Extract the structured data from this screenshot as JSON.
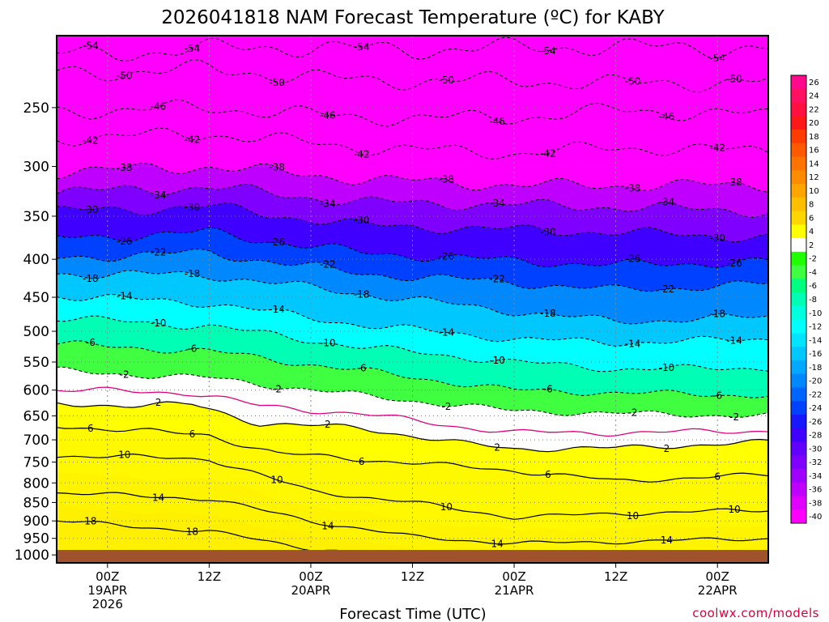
{
  "chart_data": {
    "type": "heatmap",
    "title": "2026041818 NAM Forecast Temperature (ºC) for KABY",
    "xlabel": "Forecast Time (UTC)",
    "ylabel": "",
    "credit": "coolwx.com/models",
    "y_axis": {
      "unit": "hPa",
      "scale": "log-pressure",
      "range": [
        1025,
        200
      ],
      "ticks": [
        "250",
        "300",
        "350",
        "400",
        "450",
        "500",
        "550",
        "600",
        "650",
        "700",
        "750",
        "800",
        "850",
        "900",
        "950",
        "1000"
      ]
    },
    "x_axis": {
      "unit": "forecast hour",
      "range": [
        -6,
        78
      ],
      "ticks": [
        {
          "hour": 0,
          "line1": "00Z",
          "line2": "19APR",
          "line3": "2026"
        },
        {
          "hour": 12,
          "line1": "12Z",
          "line2": "",
          "line3": ""
        },
        {
          "hour": 24,
          "line1": "00Z",
          "line2": "20APR",
          "line3": ""
        },
        {
          "hour": 36,
          "line1": "12Z",
          "line2": "",
          "line3": ""
        },
        {
          "hour": 48,
          "line1": "00Z",
          "line2": "21APR",
          "line3": ""
        },
        {
          "hour": 60,
          "line1": "12Z",
          "line2": "",
          "line3": ""
        },
        {
          "hour": 72,
          "line1": "00Z",
          "line2": "22APR",
          "line3": ""
        }
      ]
    },
    "colorbar": {
      "labels": [
        "26",
        "24",
        "22",
        "20",
        "18",
        "16",
        "14",
        "12",
        "10",
        "8",
        "6",
        "4",
        "2",
        "-2",
        "-4",
        "-6",
        "-8",
        "-10",
        "-12",
        "-14",
        "-16",
        "-18",
        "-20",
        "-22",
        "-24",
        "-26",
        "-28",
        "-30",
        "-32",
        "-34",
        "-36",
        "-38",
        "-40"
      ],
      "colors": [
        "#ff0a8c",
        "#ff1060",
        "#ff1040",
        "#ff1818",
        "#ff3c00",
        "#ff5a00",
        "#ff7400",
        "#ff8c00",
        "#ffa500",
        "#ffbe00",
        "#ffd700",
        "#ffff00",
        "#ffffff",
        "#20ff00",
        "#40ff40",
        "#00ff80",
        "#00ffb4",
        "#00ffdc",
        "#00ffff",
        "#00e4ff",
        "#00c8ff",
        "#00a8ff",
        "#0088ff",
        "#0064ff",
        "#0040ff",
        "#1818ff",
        "#4000ff",
        "#6000ff",
        "#8000ff",
        "#a000ff",
        "#c000ff",
        "#e000ff",
        "#ff00ff"
      ]
    },
    "series": [
      {
        "name": "-54",
        "values": [
          [
            -2,
            212
          ],
          [
            18,
            207
          ],
          [
            36,
            209
          ],
          [
            54,
            207
          ],
          [
            78,
            208
          ]
        ]
      },
      {
        "name": "-50",
        "values": [
          [
            -6,
            225
          ],
          [
            12,
            222
          ],
          [
            30,
            230
          ],
          [
            48,
            230
          ],
          [
            60,
            232
          ],
          [
            78,
            231
          ]
        ]
      },
      {
        "name": "-46",
        "values": [
          [
            -6,
            253
          ],
          [
            12,
            250
          ],
          [
            30,
            258
          ],
          [
            48,
            258
          ],
          [
            60,
            252
          ],
          [
            78,
            256
          ]
        ]
      },
      {
        "name": "-42",
        "values": [
          [
            -6,
            275
          ],
          [
            12,
            271
          ],
          [
            30,
            283
          ],
          [
            48,
            288
          ],
          [
            60,
            283
          ],
          [
            78,
            286
          ]
        ]
      },
      {
        "name": "-38",
        "values": [
          [
            -6,
            305
          ],
          [
            12,
            300
          ],
          [
            30,
            312
          ],
          [
            48,
            318
          ],
          [
            60,
            318
          ],
          [
            78,
            318
          ]
        ]
      },
      {
        "name": "-34",
        "values": [
          [
            -6,
            325
          ],
          [
            12,
            320
          ],
          [
            30,
            335
          ],
          [
            48,
            338
          ],
          [
            60,
            340
          ],
          [
            78,
            345
          ]
        ]
      },
      {
        "name": "-30",
        "values": [
          [
            -6,
            345
          ],
          [
            12,
            340
          ],
          [
            30,
            360
          ],
          [
            48,
            365
          ],
          [
            60,
            368
          ],
          [
            78,
            374
          ]
        ]
      },
      {
        "name": "-26",
        "values": [
          [
            -6,
            375
          ],
          [
            12,
            368
          ],
          [
            30,
            392
          ],
          [
            48,
            402
          ],
          [
            60,
            407
          ],
          [
            78,
            403
          ]
        ]
      },
      {
        "name": "-22",
        "values": [
          [
            -6,
            398
          ],
          [
            12,
            392
          ],
          [
            30,
            418
          ],
          [
            48,
            430
          ],
          [
            60,
            440
          ],
          [
            78,
            432
          ]
        ]
      },
      {
        "name": "-18",
        "values": [
          [
            -6,
            418
          ],
          [
            12,
            420
          ],
          [
            30,
            445
          ],
          [
            48,
            470
          ],
          [
            60,
            485
          ],
          [
            78,
            478
          ]
        ]
      },
      {
        "name": "-14",
        "values": [
          [
            -6,
            448
          ],
          [
            12,
            458
          ],
          [
            30,
            490
          ],
          [
            48,
            512
          ],
          [
            60,
            518
          ],
          [
            78,
            512
          ]
        ]
      },
      {
        "name": "-10",
        "values": [
          [
            -6,
            480
          ],
          [
            12,
            492
          ],
          [
            30,
            525
          ],
          [
            48,
            550
          ],
          [
            60,
            562
          ],
          [
            78,
            560
          ]
        ]
      },
      {
        "name": "-6",
        "values": [
          [
            -6,
            520
          ],
          [
            12,
            532
          ],
          [
            30,
            565
          ],
          [
            48,
            600
          ],
          [
            60,
            605
          ],
          [
            78,
            610
          ]
        ]
      },
      {
        "name": "-2",
        "values": [
          [
            -6,
            565
          ],
          [
            12,
            578
          ],
          [
            30,
            610
          ],
          [
            48,
            640
          ],
          [
            60,
            645
          ],
          [
            78,
            650
          ]
        ]
      },
      {
        "name": "2",
        "values": [
          [
            -6,
            628
          ],
          [
            10,
            628
          ],
          [
            18,
            665
          ],
          [
            30,
            675
          ],
          [
            42,
            708
          ],
          [
            48,
            720
          ],
          [
            60,
            718
          ],
          [
            78,
            705
          ]
        ]
      },
      {
        "name": "6",
        "values": [
          [
            -6,
            670
          ],
          [
            12,
            690
          ],
          [
            20,
            730
          ],
          [
            36,
            752
          ],
          [
            48,
            770
          ],
          [
            60,
            795
          ],
          [
            78,
            780
          ]
        ]
      },
      {
        "name": "10",
        "values": [
          [
            -6,
            735
          ],
          [
            12,
            742
          ],
          [
            24,
            820
          ],
          [
            36,
            850
          ],
          [
            48,
            890
          ],
          [
            60,
            880
          ],
          [
            78,
            870
          ]
        ]
      },
      {
        "name": "14",
        "values": [
          [
            -6,
            825
          ],
          [
            12,
            840
          ],
          [
            24,
            900
          ],
          [
            36,
            945
          ],
          [
            48,
            965
          ],
          [
            60,
            960
          ],
          [
            78,
            950
          ]
        ]
      },
      {
        "name": "18",
        "values": [
          [
            -6,
            900
          ],
          [
            12,
            930
          ],
          [
            24,
            980
          ],
          [
            36,
            1010
          ],
          [
            48,
            1000
          ],
          [
            60,
            1012
          ],
          [
            78,
            1000
          ]
        ]
      }
    ]
  }
}
